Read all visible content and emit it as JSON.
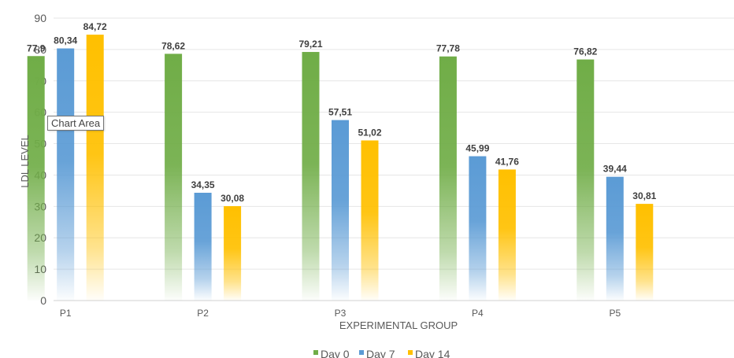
{
  "chart_data": {
    "type": "bar",
    "xlabel": "EXPERIMENTAL GROUP",
    "ylabel": "LDL LEVEL",
    "ylim": [
      0,
      90
    ],
    "ytick_step": 10,
    "grid": true,
    "legend_position": "bottom",
    "categories": [
      "P1",
      "P2",
      "P3",
      "P4",
      "P5"
    ],
    "series": [
      {
        "name": "Day 0",
        "color": "#70AD47",
        "values": [
          77.9,
          78.62,
          79.21,
          77.78,
          76.82
        ],
        "labels": [
          "77,9",
          "78,62",
          "79,21",
          "77,78",
          "76,82"
        ]
      },
      {
        "name": "Day 7",
        "color": "#5B9BD5",
        "values": [
          80.34,
          34.35,
          57.51,
          45.99,
          39.44
        ],
        "labels": [
          "80,34",
          "34,35",
          "57,51",
          "45,99",
          "39,44"
        ]
      },
      {
        "name": "Day 14",
        "color": "#FFC000",
        "values": [
          84.72,
          30.08,
          51.02,
          41.76,
          30.81
        ],
        "labels": [
          "84,72",
          "30,08",
          "51,02",
          "41,76",
          "30,81"
        ]
      }
    ]
  },
  "tooltip": {
    "label": "Chart Area"
  }
}
